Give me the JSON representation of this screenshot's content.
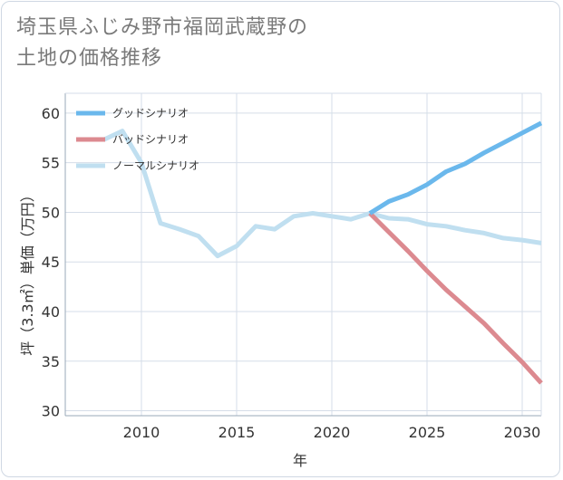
{
  "title_lines": [
    "埼玉県ふじみ野市福岡武蔵野の",
    "土地の価格推移"
  ],
  "colors": {
    "good": "#6bb8ec",
    "bad": "#dc8a90",
    "normal": "#c0dff0",
    "grid": "#d5dde8",
    "axis": "#9aa9b8"
  },
  "chart_data": {
    "type": "line",
    "xlabel": "年",
    "ylabel": "坪（3.3㎡）単価（万円）",
    "xlim": [
      2006,
      2031
    ],
    "ylim": [
      29.5,
      62
    ],
    "xticks": [
      2010,
      2015,
      2020,
      2025,
      2030
    ],
    "yticks": [
      30,
      35,
      40,
      45,
      50,
      55,
      60
    ],
    "legend_position": "top-left",
    "series": [
      {
        "name": "グッドシナリオ",
        "color_key": "good",
        "x": [
          2022,
          2023,
          2024,
          2025,
          2026,
          2027,
          2028,
          2029,
          2030,
          2031
        ],
        "y": [
          49.9,
          51.1,
          51.8,
          52.8,
          54.1,
          54.9,
          56.0,
          57.0,
          58.0,
          59.0
        ]
      },
      {
        "name": "バッドシナリオ",
        "color_key": "bad",
        "x": [
          2022,
          2023,
          2024,
          2025,
          2026,
          2027,
          2028,
          2029,
          2030,
          2031
        ],
        "y": [
          49.9,
          48.0,
          46.1,
          44.1,
          42.2,
          40.5,
          38.8,
          36.8,
          34.9,
          32.8
        ]
      },
      {
        "name": "ノーマルシナリオ",
        "color_key": "normal",
        "x": [
          2008,
          2009,
          2010,
          2011,
          2012,
          2013,
          2014,
          2015,
          2016,
          2017,
          2018,
          2019,
          2020,
          2021,
          2022,
          2023,
          2024,
          2025,
          2026,
          2027,
          2028,
          2029,
          2030,
          2031
        ],
        "y": [
          57.3,
          58.2,
          55.0,
          48.9,
          48.3,
          47.6,
          45.6,
          46.6,
          48.6,
          48.3,
          49.6,
          49.9,
          49.6,
          49.3,
          49.9,
          49.4,
          49.3,
          48.8,
          48.6,
          48.2,
          47.9,
          47.4,
          47.2,
          46.9
        ]
      }
    ]
  }
}
